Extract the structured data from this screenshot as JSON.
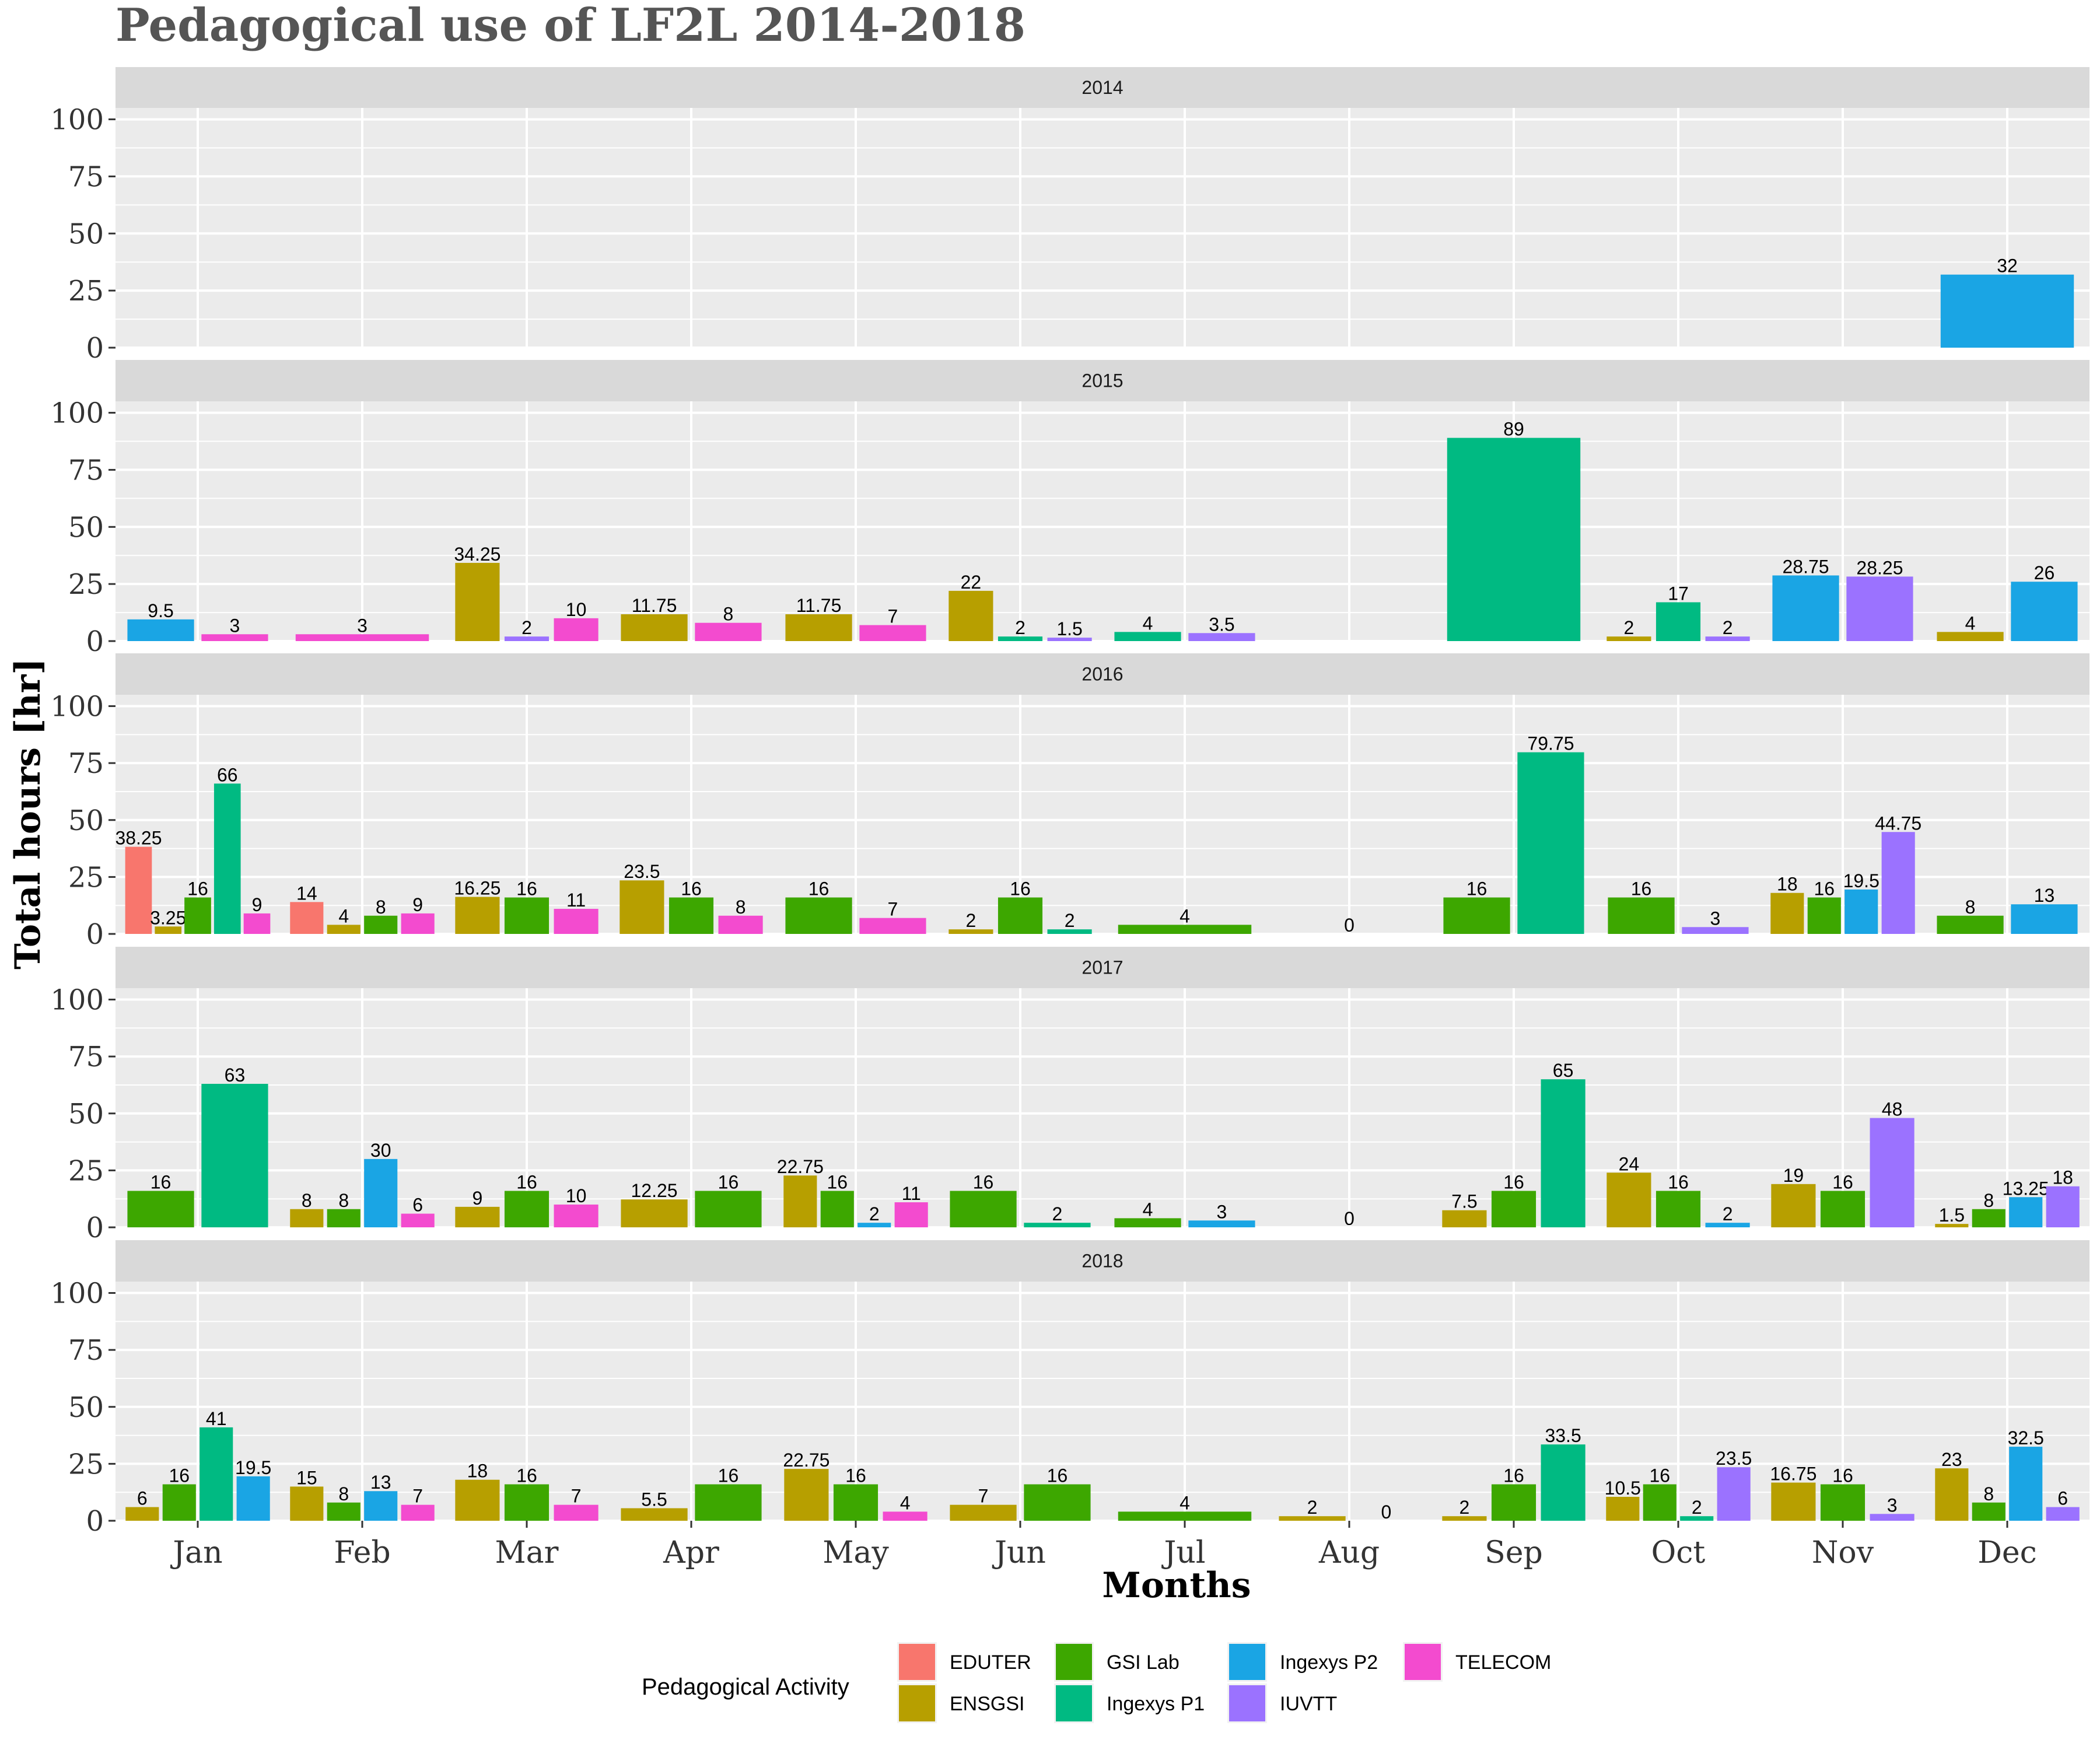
{
  "chart_data": {
    "type": "bar",
    "title": "Pedagogical use of LF2L 2014-2018",
    "xlabel": "Months",
    "ylabel": "Total hours [hr]",
    "ylim": [
      0,
      105
    ],
    "yticks": [
      0,
      25,
      50,
      75,
      100
    ],
    "categories": [
      "Jan",
      "Feb",
      "Mar",
      "Apr",
      "May",
      "Jun",
      "Jul",
      "Aug",
      "Sep",
      "Oct",
      "Nov",
      "Dec"
    ],
    "legend": {
      "title": "Pedagogical Activity",
      "position": "bottom",
      "items": [
        "EDUTER",
        "ENSGSI",
        "GSI Lab",
        "Ingexys P1",
        "Ingexys P2",
        "IUVTT",
        "TELECOM"
      ]
    },
    "colors": {
      "EDUTER": "#F8766D",
      "ENSGSI": "#B79F00",
      "GSI Lab": "#3DA700",
      "Ingexys P1": "#00BA82",
      "Ingexys P2": "#1AA5E4",
      "IUVTT": "#9B72FF",
      "TELECOM": "#F34BCF"
    },
    "facets": [
      {
        "label": "2014",
        "data": {
          "Dec": [
            [
              "Ingexys P2",
              32,
              "32"
            ]
          ]
        }
      },
      {
        "label": "2015",
        "data": {
          "Jan": [
            [
              "Ingexys P2",
              9.5,
              "9.5"
            ],
            [
              "TELECOM",
              3,
              "3"
            ]
          ],
          "Feb": [
            [
              "TELECOM",
              3,
              "3"
            ]
          ],
          "Mar": [
            [
              "ENSGSI",
              34.25,
              "34.25"
            ],
            [
              "IUVTT",
              2,
              "2"
            ],
            [
              "TELECOM",
              10,
              "10"
            ]
          ],
          "Apr": [
            [
              "ENSGSI",
              11.75,
              "11.75"
            ],
            [
              "TELECOM",
              8,
              "8"
            ]
          ],
          "May": [
            [
              "ENSGSI",
              11.75,
              "11.75"
            ],
            [
              "TELECOM",
              7,
              "7"
            ]
          ],
          "Jun": [
            [
              "ENSGSI",
              22,
              "22"
            ],
            [
              "Ingexys P1",
              2,
              "2"
            ],
            [
              "IUVTT",
              1.5,
              "1.5"
            ]
          ],
          "Jul": [
            [
              "Ingexys P1",
              4,
              "4"
            ],
            [
              "IUVTT",
              3.5,
              "3.5"
            ]
          ],
          "Sep": [
            [
              "Ingexys P1",
              89,
              "89"
            ]
          ],
          "Oct": [
            [
              "ENSGSI",
              2,
              "2"
            ],
            [
              "Ingexys P1",
              17,
              "17"
            ],
            [
              "IUVTT",
              2,
              "2"
            ]
          ],
          "Nov": [
            [
              "Ingexys P2",
              28.75,
              "28.75"
            ],
            [
              "IUVTT",
              28.25,
              "28.25"
            ]
          ],
          "Dec": [
            [
              "ENSGSI",
              4,
              "4"
            ],
            [
              "Ingexys P2",
              26,
              "26"
            ]
          ]
        }
      },
      {
        "label": "2016",
        "data": {
          "Jan": [
            [
              "EDUTER",
              38.25,
              "38.25"
            ],
            [
              "ENSGSI",
              3.25,
              "3.25"
            ],
            [
              "GSI Lab",
              16,
              "16"
            ],
            [
              "Ingexys P1",
              66,
              "66"
            ],
            [
              "TELECOM",
              9,
              "9"
            ]
          ],
          "Feb": [
            [
              "EDUTER",
              14,
              "14"
            ],
            [
              "ENSGSI",
              4,
              "4"
            ],
            [
              "GSI Lab",
              8,
              "8"
            ],
            [
              "TELECOM",
              9,
              "9"
            ]
          ],
          "Mar": [
            [
              "ENSGSI",
              16.25,
              "16.25"
            ],
            [
              "GSI Lab",
              16,
              "16"
            ],
            [
              "TELECOM",
              11,
              "11"
            ]
          ],
          "Apr": [
            [
              "ENSGSI",
              23.5,
              "23.5"
            ],
            [
              "GSI Lab",
              16,
              "16"
            ],
            [
              "TELECOM",
              8,
              "8"
            ]
          ],
          "May": [
            [
              "GSI Lab",
              16,
              "16"
            ],
            [
              "TELECOM",
              7,
              "7"
            ]
          ],
          "Jun": [
            [
              "ENSGSI",
              2,
              "2"
            ],
            [
              "GSI Lab",
              16,
              "16"
            ],
            [
              "Ingexys P1",
              2,
              "2"
            ]
          ],
          "Jul": [
            [
              "GSI Lab",
              4,
              "4"
            ]
          ],
          "Aug": [
            [
              "GSI Lab",
              0,
              "0"
            ]
          ],
          "Sep": [
            [
              "GSI Lab",
              16,
              "16"
            ],
            [
              "Ingexys P1",
              79.75,
              "79.75"
            ]
          ],
          "Oct": [
            [
              "GSI Lab",
              16,
              "16"
            ],
            [
              "IUVTT",
              3,
              "3"
            ]
          ],
          "Nov": [
            [
              "ENSGSI",
              18,
              "18"
            ],
            [
              "GSI Lab",
              16,
              "16"
            ],
            [
              "Ingexys P2",
              19.5,
              "19.5"
            ],
            [
              "IUVTT",
              44.75,
              "44.75"
            ]
          ],
          "Dec": [
            [
              "GSI Lab",
              8,
              "8"
            ],
            [
              "Ingexys P2",
              13,
              "13"
            ]
          ]
        }
      },
      {
        "label": "2017",
        "data": {
          "Jan": [
            [
              "GSI Lab",
              16,
              "16"
            ],
            [
              "Ingexys P1",
              63,
              "63"
            ]
          ],
          "Feb": [
            [
              "ENSGSI",
              8,
              "8"
            ],
            [
              "GSI Lab",
              8,
              "8"
            ],
            [
              "Ingexys P2",
              30,
              "30"
            ],
            [
              "TELECOM",
              6,
              "6"
            ]
          ],
          "Mar": [
            [
              "ENSGSI",
              9,
              "9"
            ],
            [
              "GSI Lab",
              16,
              "16"
            ],
            [
              "TELECOM",
              10,
              "10"
            ]
          ],
          "Apr": [
            [
              "ENSGSI",
              12.25,
              "12.25"
            ],
            [
              "GSI Lab",
              16,
              "16"
            ]
          ],
          "May": [
            [
              "ENSGSI",
              22.75,
              "22.75"
            ],
            [
              "GSI Lab",
              16,
              "16"
            ],
            [
              "Ingexys P2",
              2,
              "2"
            ],
            [
              "TELECOM",
              11,
              "11"
            ]
          ],
          "Jun": [
            [
              "GSI Lab",
              16,
              "16"
            ],
            [
              "Ingexys P1",
              2,
              "2"
            ]
          ],
          "Jul": [
            [
              "GSI Lab",
              4,
              "4"
            ],
            [
              "Ingexys P2",
              3,
              "3"
            ]
          ],
          "Aug": [
            [
              "GSI Lab",
              0,
              "0"
            ]
          ],
          "Sep": [
            [
              "ENSGSI",
              7.5,
              "7.5"
            ],
            [
              "GSI Lab",
              16,
              "16"
            ],
            [
              "Ingexys P1",
              65,
              "65"
            ]
          ],
          "Oct": [
            [
              "ENSGSI",
              24,
              "24"
            ],
            [
              "GSI Lab",
              16,
              "16"
            ],
            [
              "Ingexys P2",
              2,
              "2"
            ]
          ],
          "Nov": [
            [
              "ENSGSI",
              19,
              "19"
            ],
            [
              "GSI Lab",
              16,
              "16"
            ],
            [
              "IUVTT",
              48,
              "48"
            ]
          ],
          "Dec": [
            [
              "ENSGSI",
              1.5,
              "1.5"
            ],
            [
              "GSI Lab",
              8,
              "8"
            ],
            [
              "Ingexys P2",
              13.25,
              "13.25"
            ],
            [
              "IUVTT",
              18,
              "18"
            ]
          ]
        }
      },
      {
        "label": "2018",
        "data": {
          "Jan": [
            [
              "ENSGSI",
              6,
              "6"
            ],
            [
              "GSI Lab",
              16,
              "16"
            ],
            [
              "Ingexys P1",
              41,
              "41"
            ],
            [
              "Ingexys P2",
              19.5,
              "19.5"
            ]
          ],
          "Feb": [
            [
              "ENSGSI",
              15,
              "15"
            ],
            [
              "GSI Lab",
              8,
              "8"
            ],
            [
              "Ingexys P2",
              13,
              "13"
            ],
            [
              "TELECOM",
              7,
              "7"
            ]
          ],
          "Mar": [
            [
              "ENSGSI",
              18,
              "18"
            ],
            [
              "GSI Lab",
              16,
              "16"
            ],
            [
              "TELECOM",
              7,
              "7"
            ]
          ],
          "Apr": [
            [
              "ENSGSI",
              5.5,
              "5.5"
            ],
            [
              "GSI Lab",
              16,
              "16"
            ]
          ],
          "May": [
            [
              "ENSGSI",
              22.75,
              "22.75"
            ],
            [
              "GSI Lab",
              16,
              "16"
            ],
            [
              "TELECOM",
              4,
              "4"
            ]
          ],
          "Jun": [
            [
              "ENSGSI",
              7,
              "7"
            ],
            [
              "GSI Lab",
              16,
              "16"
            ]
          ],
          "Jul": [
            [
              "GSI Lab",
              4,
              "4"
            ]
          ],
          "Aug": [
            [
              "ENSGSI",
              2,
              "2"
            ],
            [
              "GSI Lab",
              0,
              "0"
            ]
          ],
          "Sep": [
            [
              "ENSGSI",
              2,
              "2"
            ],
            [
              "GSI Lab",
              16,
              "16"
            ],
            [
              "Ingexys P1",
              33.5,
              "33.5"
            ]
          ],
          "Oct": [
            [
              "ENSGSI",
              10.5,
              "10.5"
            ],
            [
              "GSI Lab",
              16,
              "16"
            ],
            [
              "Ingexys P1",
              2,
              "2"
            ],
            [
              "IUVTT",
              23.5,
              "23.5"
            ]
          ],
          "Nov": [
            [
              "ENSGSI",
              16.75,
              "16.75"
            ],
            [
              "GSI Lab",
              16,
              "16"
            ],
            [
              "IUVTT",
              3,
              "3"
            ]
          ],
          "Dec": [
            [
              "ENSGSI",
              23,
              "23"
            ],
            [
              "GSI Lab",
              8,
              "8"
            ],
            [
              "Ingexys P2",
              32.5,
              "32.5"
            ],
            [
              "IUVTT",
              6,
              "6"
            ]
          ]
        }
      }
    ]
  }
}
